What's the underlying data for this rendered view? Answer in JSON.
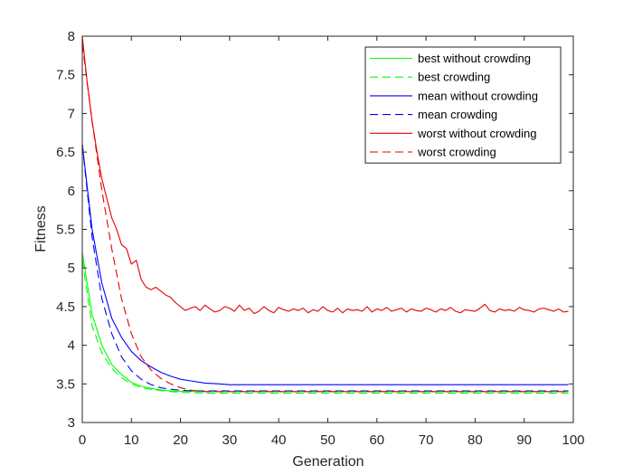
{
  "chart_data": {
    "type": "line",
    "title": "",
    "xlabel": "Generation",
    "ylabel": "Fitness",
    "xlim": [
      0,
      100
    ],
    "ylim": [
      3,
      8
    ],
    "xticks": [
      "0",
      "10",
      "20",
      "30",
      "40",
      "50",
      "60",
      "70",
      "80",
      "90",
      "100"
    ],
    "yticks": [
      "3",
      "3.5",
      "4",
      "4.5",
      "5",
      "5.5",
      "6",
      "6.5",
      "7",
      "7.5",
      "8"
    ],
    "grid": false,
    "legend_position": "top-right",
    "series": [
      {
        "name": "best without crowding",
        "color": "#00ff00",
        "dash": "solid",
        "x": [
          0,
          2,
          4,
          6,
          8,
          10,
          12,
          15,
          18,
          20,
          25,
          30,
          40,
          50,
          60,
          70,
          80,
          90,
          99
        ],
        "y": [
          5.2,
          4.4,
          4.0,
          3.75,
          3.62,
          3.52,
          3.47,
          3.43,
          3.41,
          3.405,
          3.4,
          3.4,
          3.4,
          3.4,
          3.4,
          3.4,
          3.4,
          3.4,
          3.4
        ]
      },
      {
        "name": "best crowding",
        "color": "#00ff00",
        "dash": "dashed",
        "x": [
          0,
          2,
          4,
          6,
          8,
          10,
          12,
          15,
          18,
          20,
          25,
          30,
          40,
          50,
          60,
          70,
          80,
          90,
          99
        ],
        "y": [
          5.1,
          4.25,
          3.9,
          3.7,
          3.58,
          3.5,
          3.45,
          3.42,
          3.4,
          3.39,
          3.38,
          3.38,
          3.38,
          3.38,
          3.38,
          3.38,
          3.38,
          3.38,
          3.38
        ]
      },
      {
        "name": "mean without crowding",
        "color": "#0000ff",
        "dash": "solid",
        "x": [
          0,
          2,
          4,
          6,
          8,
          10,
          12,
          14,
          16,
          18,
          20,
          22,
          25,
          28,
          30,
          40,
          50,
          60,
          70,
          80,
          90,
          99
        ],
        "y": [
          6.6,
          5.5,
          4.8,
          4.35,
          4.1,
          3.92,
          3.8,
          3.72,
          3.65,
          3.6,
          3.56,
          3.54,
          3.51,
          3.5,
          3.49,
          3.49,
          3.49,
          3.49,
          3.49,
          3.49,
          3.49,
          3.49
        ]
      },
      {
        "name": "mean crowding",
        "color": "#0000ff",
        "dash": "dashed",
        "x": [
          0,
          2,
          4,
          6,
          8,
          10,
          12,
          14,
          16,
          18,
          20,
          22,
          25,
          30,
          40,
          50,
          60,
          70,
          80,
          90,
          99
        ],
        "y": [
          6.6,
          5.4,
          4.6,
          4.15,
          3.85,
          3.67,
          3.56,
          3.49,
          3.45,
          3.43,
          3.42,
          3.41,
          3.41,
          3.41,
          3.41,
          3.41,
          3.41,
          3.41,
          3.41,
          3.41,
          3.41
        ]
      },
      {
        "name": "worst without crowding",
        "color": "#e60000",
        "dash": "solid",
        "x": [
          0,
          1,
          2,
          3,
          4,
          5,
          6,
          7,
          8,
          9,
          10,
          11,
          12,
          13,
          14,
          15,
          16,
          17,
          18,
          19,
          20,
          21,
          22,
          23,
          24,
          25,
          26,
          27,
          28,
          29,
          30,
          31,
          32,
          33,
          34,
          35,
          36,
          37,
          38,
          39,
          40,
          41,
          42,
          43,
          44,
          45,
          46,
          47,
          48,
          49,
          50,
          51,
          52,
          53,
          54,
          55,
          56,
          57,
          58,
          59,
          60,
          61,
          62,
          63,
          64,
          65,
          66,
          67,
          68,
          69,
          70,
          71,
          72,
          73,
          74,
          75,
          76,
          77,
          78,
          79,
          80,
          81,
          82,
          83,
          84,
          85,
          86,
          87,
          88,
          89,
          90,
          91,
          92,
          93,
          94,
          95,
          96,
          97,
          98,
          99
        ],
        "y": [
          8.0,
          7.4,
          6.9,
          6.5,
          6.15,
          5.9,
          5.65,
          5.5,
          5.3,
          5.25,
          5.05,
          5.1,
          4.85,
          4.75,
          4.72,
          4.75,
          4.7,
          4.65,
          4.62,
          4.55,
          4.5,
          4.45,
          4.48,
          4.5,
          4.45,
          4.52,
          4.47,
          4.43,
          4.45,
          4.5,
          4.48,
          4.44,
          4.52,
          4.45,
          4.48,
          4.41,
          4.44,
          4.5,
          4.45,
          4.42,
          4.49,
          4.46,
          4.44,
          4.47,
          4.45,
          4.48,
          4.42,
          4.46,
          4.44,
          4.5,
          4.45,
          4.43,
          4.48,
          4.42,
          4.47,
          4.45,
          4.46,
          4.44,
          4.5,
          4.43,
          4.47,
          4.45,
          4.49,
          4.44,
          4.46,
          4.48,
          4.43,
          4.47,
          4.45,
          4.44,
          4.48,
          4.46,
          4.43,
          4.47,
          4.45,
          4.49,
          4.44,
          4.42,
          4.46,
          4.45,
          4.44,
          4.48,
          4.53,
          4.45,
          4.43,
          4.47,
          4.45,
          4.46,
          4.44,
          4.49,
          4.46,
          4.45,
          4.43,
          4.47,
          4.48,
          4.46,
          4.44,
          4.47,
          4.43,
          4.44
        ]
      },
      {
        "name": "worst crowding",
        "color": "#e60000",
        "dash": "dashed",
        "x": [
          0,
          2,
          4,
          6,
          8,
          10,
          12,
          14,
          16,
          18,
          20,
          22,
          25,
          30,
          40,
          50,
          60,
          70,
          80,
          90,
          99
        ],
        "y": [
          7.9,
          6.9,
          6.0,
          5.25,
          4.6,
          4.15,
          3.85,
          3.68,
          3.57,
          3.5,
          3.45,
          3.42,
          3.4,
          3.4,
          3.4,
          3.4,
          3.4,
          3.4,
          3.4,
          3.4,
          3.4
        ]
      }
    ]
  }
}
